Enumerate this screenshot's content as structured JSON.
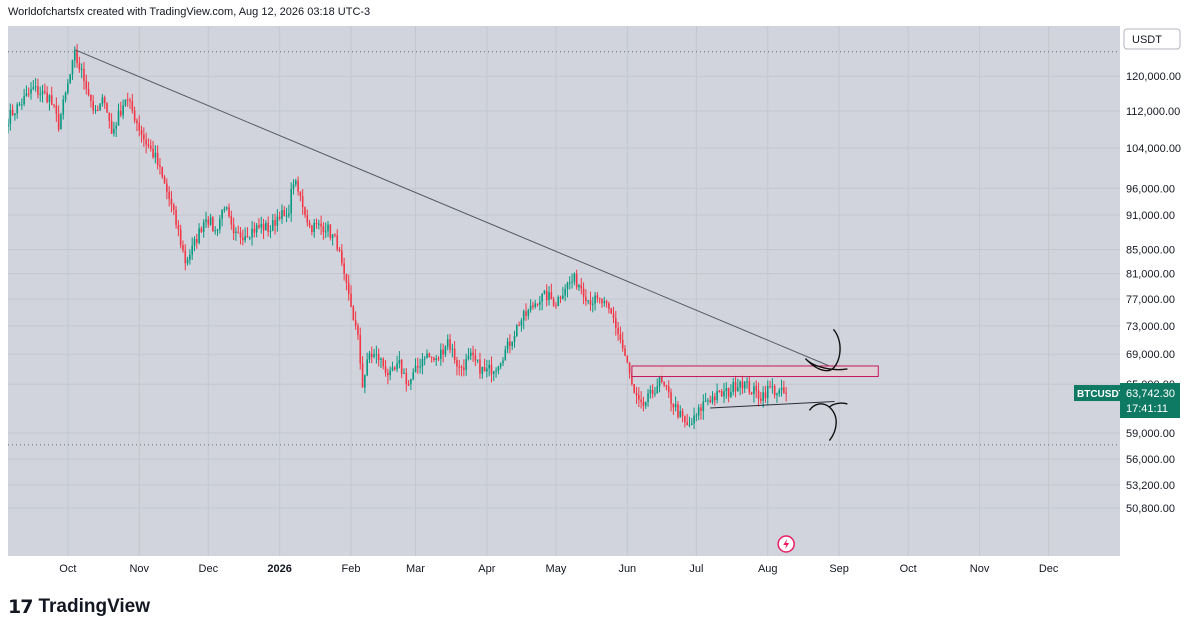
{
  "header": {
    "text": "Worldofchartsfx created with TradingView.com, Aug 12, 2026 03:18 UTC-3"
  },
  "footer": {
    "logo_text": "TradingView"
  },
  "colors": {
    "up": "#089981",
    "down": "#f23645",
    "background": "#d1d4dc",
    "trendline": "#555966",
    "resistance_fill": "#e3d0d5",
    "resistance_border": "#c2185b",
    "symbol_tag": "#0f7a63"
  },
  "chart_data": {
    "type": "candlestick",
    "symbol": "BTCUSDT",
    "currency": "USDT",
    "last_price": "63,742.30",
    "countdown": "17:41:11",
    "y_scale": "log",
    "ylim": [
      50000,
      130000
    ],
    "y_ticks": [
      "120,000.00",
      "112,000.00",
      "104,000.00",
      "96,000.00",
      "91,000.00",
      "85,000.00",
      "81,000.00",
      "77,000.00",
      "73,000.00",
      "69,000.00",
      "65,000.00",
      "59,000.00",
      "56,000.00",
      "53,200.00",
      "50,800.00"
    ],
    "x_labels": [
      "Oct",
      "Nov",
      "Dec",
      "2026",
      "Feb",
      "Mar",
      "Apr",
      "May",
      "Jun",
      "Jul",
      "Aug",
      "Sep",
      "Oct",
      "Nov",
      "Dec"
    ],
    "x_label_days": [
      0,
      31,
      61,
      92,
      123,
      151,
      182,
      212,
      243,
      273,
      304,
      335,
      365,
      396,
      426
    ],
    "x_range_days": [
      -26,
      457
    ],
    "horizontal_levels": [
      {
        "price": 126000,
        "style": "dotted"
      },
      {
        "price": 57600,
        "style": "dotted"
      }
    ],
    "trendline": {
      "from": {
        "day": 3,
        "price": 126500
      },
      "to": {
        "day": 337,
        "price": 66600
      }
    },
    "resistance_zone": {
      "from_day": 245,
      "to_day": 352,
      "top": 67400,
      "bottom": 66000
    },
    "support_line": {
      "from": {
        "day": 279,
        "price": 62000
      },
      "to": {
        "day": 333,
        "price": 62800
      }
    },
    "candles_anchor_start_day": -26,
    "anchors": [
      [
        -26,
        110500
      ],
      [
        -15,
        117000
      ],
      [
        -8,
        115000
      ],
      [
        -4,
        109000
      ],
      [
        3,
        125000
      ],
      [
        8,
        118000
      ],
      [
        12,
        111000
      ],
      [
        16,
        115000
      ],
      [
        19,
        107000
      ],
      [
        25,
        115000
      ],
      [
        28,
        112000
      ],
      [
        33,
        106000
      ],
      [
        38,
        102000
      ],
      [
        44,
        94000
      ],
      [
        48,
        88000
      ],
      [
        51,
        83000
      ],
      [
        54,
        85000
      ],
      [
        60,
        91000
      ],
      [
        64,
        88000
      ],
      [
        68,
        93000
      ],
      [
        72,
        87000
      ],
      [
        78,
        88000
      ],
      [
        84,
        89000
      ],
      [
        88,
        88500
      ],
      [
        92,
        91500
      ],
      [
        95,
        90000
      ],
      [
        98,
        97500
      ],
      [
        102,
        93000
      ],
      [
        105,
        89000
      ],
      [
        112,
        89000
      ],
      [
        117,
        86000
      ],
      [
        120,
        80000
      ],
      [
        123,
        76000
      ],
      [
        126,
        71000
      ],
      [
        128,
        65000
      ],
      [
        131,
        69000
      ],
      [
        135,
        68500
      ],
      [
        140,
        66000
      ],
      [
        144,
        67500
      ],
      [
        148,
        65000
      ],
      [
        155,
        69000
      ],
      [
        160,
        68000
      ],
      [
        165,
        71000
      ],
      [
        170,
        67000
      ],
      [
        175,
        68500
      ],
      [
        181,
        66500
      ],
      [
        186,
        67500
      ],
      [
        191,
        70000
      ],
      [
        196,
        73500
      ],
      [
        200,
        75000
      ],
      [
        204,
        77000
      ],
      [
        208,
        77500
      ],
      [
        212,
        76500
      ],
      [
        216,
        79000
      ],
      [
        220,
        80000
      ],
      [
        223,
        79000
      ],
      [
        226,
        77000
      ],
      [
        232,
        76500
      ],
      [
        237,
        74000
      ],
      [
        240,
        71000
      ],
      [
        243,
        67500
      ],
      [
        246,
        63500
      ],
      [
        249,
        62000
      ],
      [
        253,
        63500
      ],
      [
        257,
        65500
      ],
      [
        261,
        63500
      ],
      [
        266,
        61000
      ],
      [
        269,
        59600
      ],
      [
        272,
        60500
      ],
      [
        277,
        63000
      ],
      [
        282,
        63500
      ],
      [
        287,
        64000
      ],
      [
        292,
        65500
      ],
      [
        297,
        64200
      ],
      [
        301,
        63500
      ],
      [
        305,
        64500
      ],
      [
        309,
        63900
      ],
      [
        312,
        63742
      ]
    ]
  }
}
